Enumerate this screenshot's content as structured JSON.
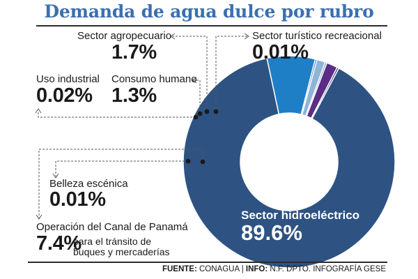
{
  "title": "Demanda de agua dulce por rubro",
  "chart_data": {
    "type": "pie",
    "variant": "donut",
    "title": "Demanda de agua dulce por rubro",
    "slices": [
      {
        "label": "Sector hidroeléctrico",
        "value": 89.6,
        "display": "89.6%",
        "color": "#2e5382"
      },
      {
        "label": "Operación del Canal de Panamá para el tránsito de buques y mercaderías",
        "value": 7.4,
        "display": "7.4%",
        "color": "#1f7fc6"
      },
      {
        "label": "Belleza escénica",
        "value": 0.01,
        "display": "0.01%",
        "color": "#2a73b8"
      },
      {
        "label": "Consumo humano",
        "value": 1.3,
        "display": "1.3%",
        "color": "#8eb4d8"
      },
      {
        "label": "Uso industrial",
        "value": 0.02,
        "display": "0.02%",
        "color": "#6b8fbe"
      },
      {
        "label": "Sector agropecuario",
        "value": 1.7,
        "display": "1.7%",
        "color": "#5b2d86"
      },
      {
        "label": "Sector turístico recreacional",
        "value": 0.01,
        "display": "0.01%",
        "color": "#3a2a6e"
      }
    ]
  },
  "labels": {
    "agro_name": "Sector agropecuario",
    "agro_pct": "1.7%",
    "turismo_name": "Sector turístico recreacional",
    "turismo_pct": "0.01%",
    "industrial_name": "Uso industrial",
    "industrial_pct": "0.02%",
    "humano_name": "Consumo humano",
    "humano_pct": "1.3%",
    "belleza_name": "Belleza escénica",
    "belleza_pct": "0.01%",
    "canal_name": "Operación del Canal de Panamá",
    "canal_pct": "7.4%",
    "canal_desc_1": "para el tránsito de",
    "canal_desc_2": "buques y mercaderías",
    "hydro_name": "Sector hidroeléctrico",
    "hydro_pct": "89.6%"
  },
  "source": {
    "fuente_label": "FUENTE:",
    "fuente_value": "CONAGUA",
    "separator": "|",
    "info_label": "INFO:",
    "info_value": "N.F. DPTO. INFOGRAFÍA GESE"
  }
}
